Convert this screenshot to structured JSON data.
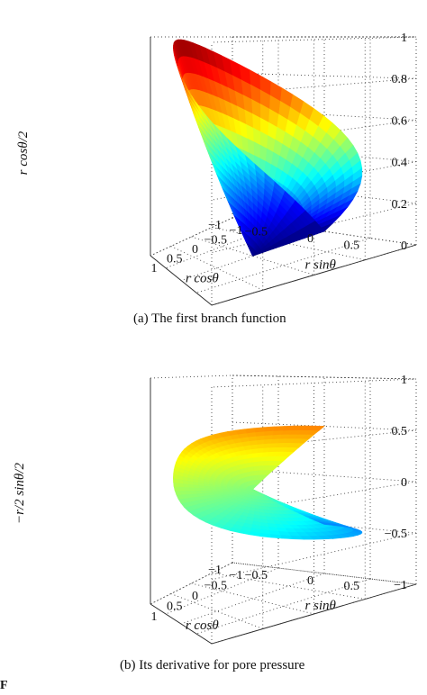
{
  "chart_data": [
    {
      "type": "surface",
      "function": "r cos(theta/2)",
      "domain": {
        "r": [
          0,
          1
        ],
        "theta": [
          -3.1416,
          3.1416
        ]
      },
      "colormap": "jet",
      "xlabel": "r cosθ",
      "ylabel": "r sinθ",
      "zlabel": "r cosθ/2",
      "xlim": [
        -1,
        1
      ],
      "ylim": [
        -1,
        1
      ],
      "zlim": [
        0,
        1
      ],
      "xticks": [
        "−1",
        "−0.5",
        "0",
        "0.5",
        "1"
      ],
      "yticks": [
        "−1",
        "−0.5",
        "0",
        "0.5"
      ],
      "zticks": [
        "0",
        "0.2",
        "0.4",
        "0.6",
        "0.8",
        "1"
      ],
      "grid": true,
      "caption": "(a)  The first branch function"
    },
    {
      "type": "surface",
      "function": "-r/2 sin(theta/2)",
      "domain": {
        "r": [
          0,
          1
        ],
        "theta": [
          -3.1416,
          3.1416
        ]
      },
      "colormap": "jet",
      "xlabel": "r cosθ",
      "ylabel": "r sinθ",
      "zlabel": "−r/2 sinθ/2",
      "xlim": [
        -1,
        1
      ],
      "ylim": [
        -1,
        1
      ],
      "zlim": [
        -1,
        1
      ],
      "xticks": [
        "−1",
        "−0.5",
        "0",
        "0.5",
        "1"
      ],
      "yticks": [
        "−1",
        "−0.5",
        "0",
        "0.5"
      ],
      "zticks": [
        "−1",
        "−0.5",
        "0",
        "0.5",
        "1"
      ],
      "grid": true,
      "caption": "(b)  Its derivative for pore pressure"
    }
  ],
  "footer": "F"
}
